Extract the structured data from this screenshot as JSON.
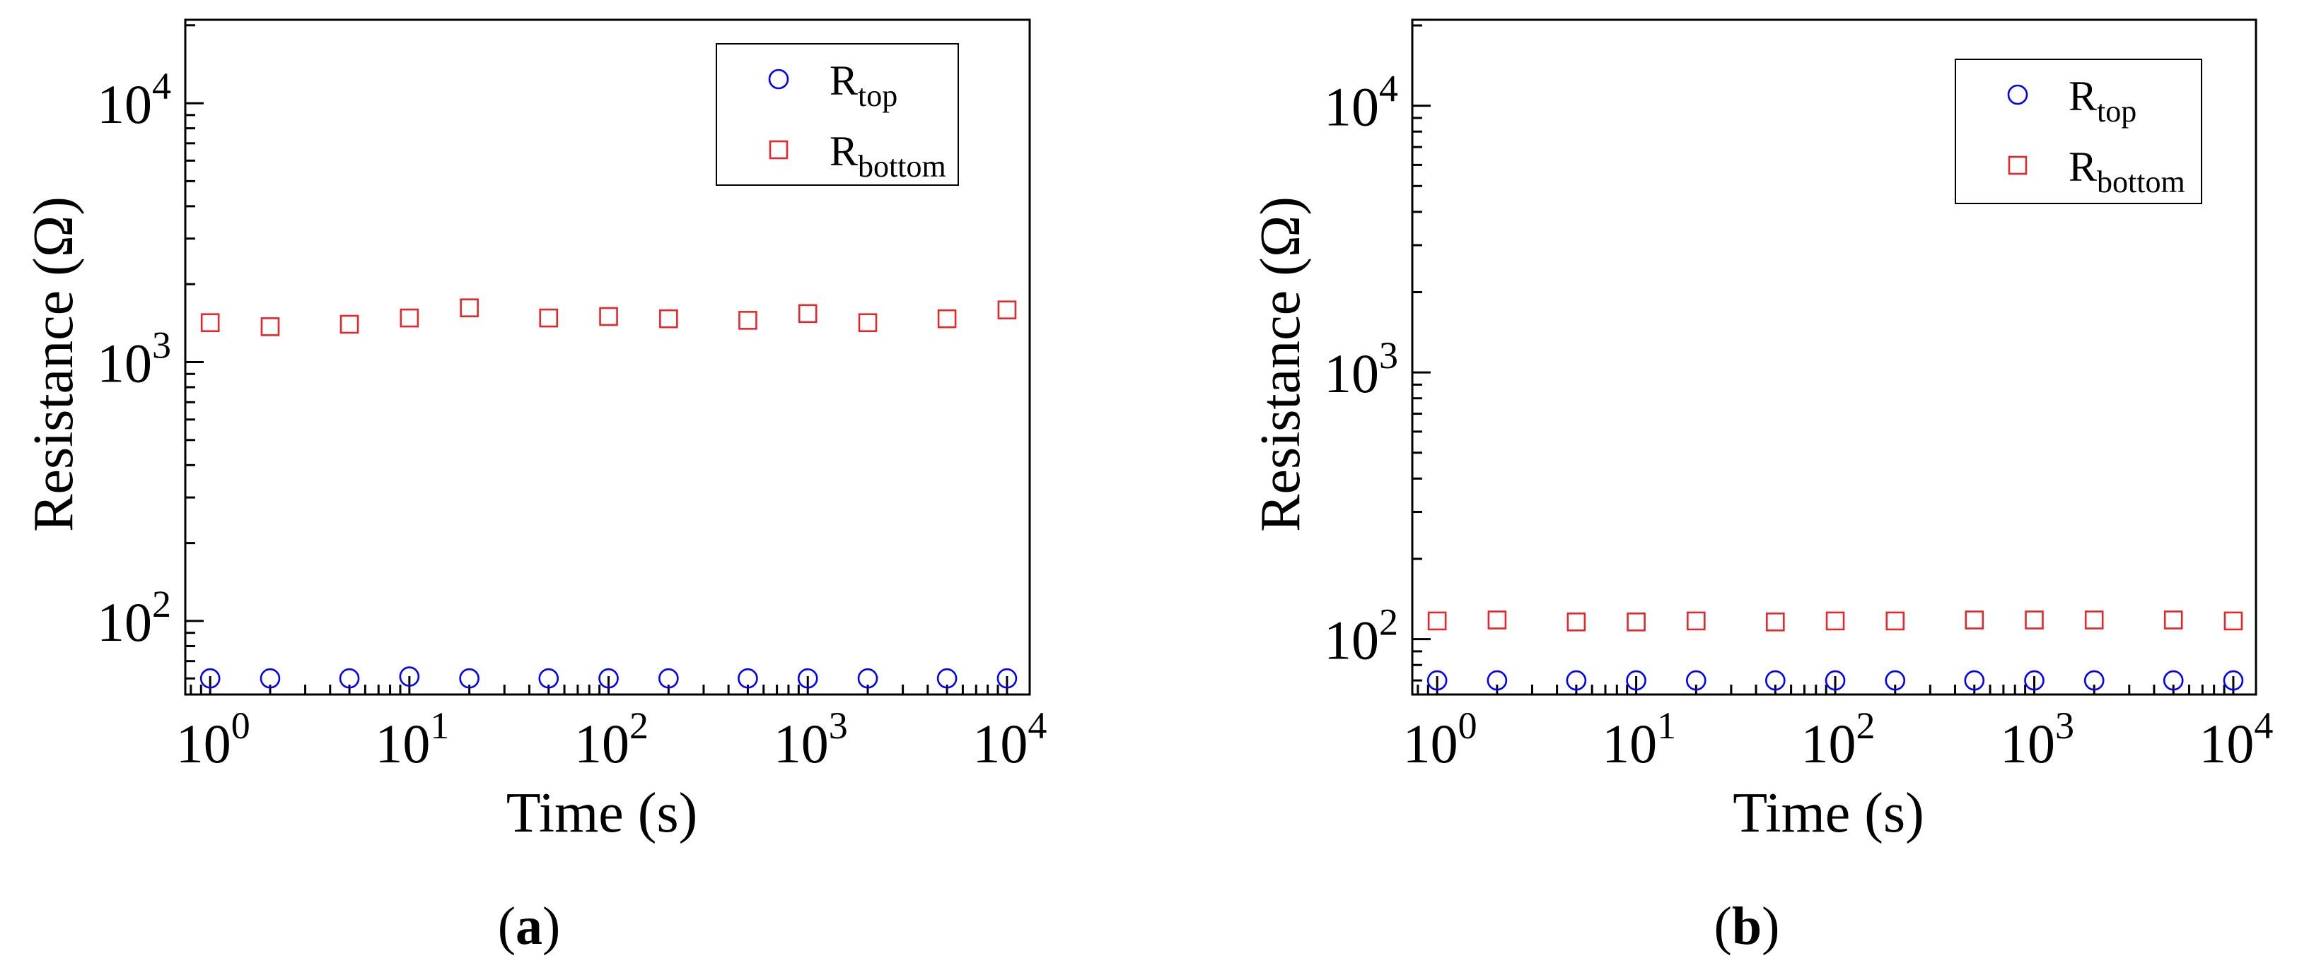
{
  "chart_data": [
    {
      "type": "scatter",
      "panel_label": "a",
      "xlabel": "Time (s)",
      "ylabel": "Resistance (Ω)",
      "xscale": "log",
      "yscale": "log",
      "xlim": [
        0.75,
        13000
      ],
      "ylim": [
        52,
        21000
      ],
      "xticks": [
        {
          "base": "10",
          "exp": "0",
          "value": 1
        },
        {
          "base": "10",
          "exp": "1",
          "value": 10
        },
        {
          "base": "10",
          "exp": "2",
          "value": 100
        },
        {
          "base": "10",
          "exp": "3",
          "value": 1000
        },
        {
          "base": "10",
          "exp": "4",
          "value": 10000
        }
      ],
      "yticks": [
        {
          "base": "10",
          "exp": "2",
          "value": 100
        },
        {
          "base": "10",
          "exp": "3",
          "value": 1000
        },
        {
          "base": "10",
          "exp": "4",
          "value": 10000
        }
      ],
      "legend_position": "top-right",
      "x": [
        1,
        2,
        5,
        10,
        20,
        50,
        100,
        200,
        500,
        1000,
        2000,
        5000,
        10000
      ],
      "series": [
        {
          "name": "R_top",
          "label_main": "R",
          "label_sub": "top",
          "marker": "circle",
          "color": "#0000ff",
          "values": [
            60,
            60,
            60,
            61,
            60,
            60,
            60,
            60,
            60,
            60,
            60,
            60,
            60
          ]
        },
        {
          "name": "R_bottom",
          "label_main": "R",
          "label_sub": "bottom",
          "marker": "square",
          "color": "#e8262a",
          "values": [
            1420,
            1370,
            1400,
            1480,
            1620,
            1480,
            1500,
            1470,
            1450,
            1540,
            1420,
            1470,
            1590
          ]
        }
      ]
    },
    {
      "type": "scatter",
      "panel_label": "b",
      "xlabel": "Time (s)",
      "ylabel": "Resistance (Ω)",
      "xscale": "log",
      "yscale": "log",
      "xlim": [
        0.75,
        13000
      ],
      "ylim": [
        62,
        21000
      ],
      "xticks": [
        {
          "base": "10",
          "exp": "0",
          "value": 1
        },
        {
          "base": "10",
          "exp": "1",
          "value": 10
        },
        {
          "base": "10",
          "exp": "2",
          "value": 100
        },
        {
          "base": "10",
          "exp": "3",
          "value": 1000
        },
        {
          "base": "10",
          "exp": "4",
          "value": 10000
        }
      ],
      "yticks": [
        {
          "base": "10",
          "exp": "2",
          "value": 100
        },
        {
          "base": "10",
          "exp": "3",
          "value": 1000
        },
        {
          "base": "10",
          "exp": "4",
          "value": 10000
        }
      ],
      "legend_position": "top-right",
      "x": [
        1,
        2,
        5,
        10,
        20,
        50,
        100,
        200,
        500,
        1000,
        2000,
        5000,
        10000
      ],
      "series": [
        {
          "name": "R_top",
          "label_main": "R",
          "label_sub": "top",
          "marker": "circle",
          "color": "#0000ff",
          "values": [
            70,
            70,
            70,
            70,
            70,
            70,
            70,
            70,
            70,
            70,
            70,
            70,
            70
          ]
        },
        {
          "name": "R_bottom",
          "label_main": "R",
          "label_sub": "bottom",
          "marker": "square",
          "color": "#e8262a",
          "values": [
            117,
            118,
            116,
            116,
            117,
            116,
            117,
            117,
            118,
            118,
            118,
            118,
            117
          ]
        }
      ]
    }
  ],
  "captions": [
    {
      "open": "(",
      "label": "a",
      "close": ")"
    },
    {
      "open": "(",
      "label": "b",
      "close": ")"
    }
  ]
}
